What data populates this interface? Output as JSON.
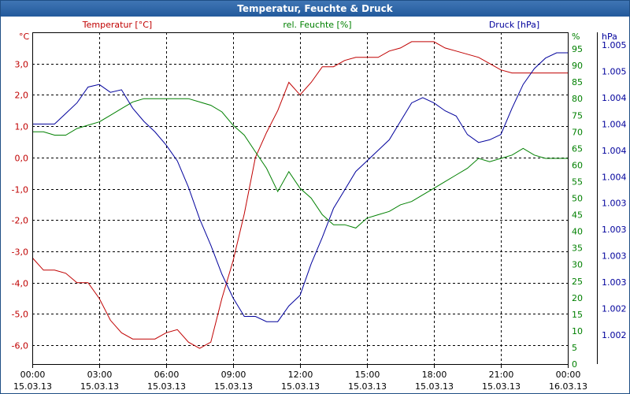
{
  "window": {
    "title": "Temperatur, Feuchte & Druck"
  },
  "chart_data": {
    "type": "line",
    "title": "Temperatur, Feuchte & Druck",
    "grid": true,
    "x_ticks": [
      {
        "time": "00:00",
        "date": "15.03.13"
      },
      {
        "time": "03:00",
        "date": "15.03.13"
      },
      {
        "time": "06:00",
        "date": "15.03.13"
      },
      {
        "time": "09:00",
        "date": "15.03.13"
      },
      {
        "time": "12:00",
        "date": "15.03.13"
      },
      {
        "time": "15:00",
        "date": "15.03.13"
      },
      {
        "time": "18:00",
        "date": "15.03.13"
      },
      {
        "time": "21:00",
        "date": "15.03.13"
      },
      {
        "time": "00:00",
        "date": "16.03.13"
      }
    ],
    "axes": {
      "temperature": {
        "series_label": "Temperatur [°C]",
        "unit": "°C",
        "color": "#c00000",
        "range": [
          -6.6,
          4.0
        ],
        "tick_values": [
          3,
          2,
          1,
          0,
          -1,
          -2,
          -3,
          -4,
          -5,
          -6
        ],
        "tick_labels": [
          "3,0",
          "2,0",
          "1,0",
          "0,0",
          "-1,0",
          "-2,0",
          "-3,0",
          "-4,0",
          "-5,0",
          "-6,0"
        ]
      },
      "humidity": {
        "series_label": "rel. Feuchte [%]",
        "unit": "%",
        "color": "#008000",
        "range": [
          0,
          100
        ],
        "tick_values": [
          95,
          90,
          85,
          80,
          75,
          70,
          65,
          60,
          55,
          50,
          45,
          40,
          35,
          30,
          25,
          20,
          15,
          10,
          5,
          0
        ],
        "tick_labels": [
          "95",
          "90",
          "85",
          "80",
          "75",
          "70",
          "65",
          "60",
          "55",
          "50",
          "45",
          "40",
          "35",
          "30",
          "25",
          "20",
          "15",
          "10",
          "5",
          "0"
        ]
      },
      "pressure": {
        "series_label": "Druck [hPa]",
        "unit": "hPa",
        "color": "#00009c",
        "tick_labels": [
          "1.005",
          "1.005",
          "1.004",
          "1.004",
          "1.004",
          "1.004",
          "1.003",
          "1.003",
          "1.003",
          "1.003",
          "1.002",
          "1.002"
        ]
      }
    },
    "series": [
      {
        "name": "Temperatur [°C]",
        "axis": "temperature",
        "color": "#c00000",
        "x_hours": [
          0,
          0.5,
          1,
          1.5,
          2,
          2.5,
          3,
          3.5,
          4,
          4.5,
          5,
          5.5,
          6,
          6.5,
          7,
          7.5,
          8,
          8.5,
          9,
          9.5,
          10,
          10.5,
          11,
          11.5,
          12,
          12.5,
          13,
          13.5,
          14,
          14.5,
          15,
          15.5,
          16,
          16.5,
          17,
          17.5,
          18,
          18.5,
          19,
          19.5,
          20,
          20.5,
          21,
          21.5,
          22,
          22.5,
          23,
          23.5,
          24
        ],
        "values": [
          -3.2,
          -3.6,
          -3.6,
          -3.7,
          -4.0,
          -4.0,
          -4.5,
          -5.2,
          -5.6,
          -5.8,
          -5.8,
          -5.8,
          -5.6,
          -5.5,
          -5.9,
          -6.1,
          -5.9,
          -4.5,
          -3.3,
          -1.8,
          0.0,
          0.8,
          1.5,
          2.4,
          2.0,
          2.4,
          2.9,
          2.9,
          3.1,
          3.2,
          3.2,
          3.2,
          3.4,
          3.5,
          3.7,
          3.7,
          3.7,
          3.5,
          3.4,
          3.3,
          3.2,
          3.0,
          2.8,
          2.7,
          2.7,
          2.7,
          2.7,
          2.7,
          2.7
        ]
      },
      {
        "name": "rel. Feuchte [%]",
        "axis": "humidity",
        "color": "#008000",
        "x_hours": [
          0,
          0.5,
          1,
          1.5,
          2,
          2.5,
          3,
          3.5,
          4,
          4.5,
          5,
          5.5,
          6,
          6.5,
          7,
          7.5,
          8,
          8.5,
          9,
          9.5,
          10,
          10.5,
          11,
          11.5,
          12,
          12.5,
          13,
          13.5,
          14,
          14.5,
          15,
          15.5,
          16,
          16.5,
          17,
          17.5,
          18,
          18.5,
          19,
          19.5,
          20,
          20.5,
          21,
          21.5,
          22,
          22.5,
          23,
          23.5,
          24
        ],
        "values": [
          70,
          70,
          69,
          69,
          71,
          72,
          73,
          75,
          77,
          79,
          80,
          80,
          80,
          80,
          80,
          79,
          78,
          76,
          72,
          69,
          64,
          59,
          52,
          58,
          53,
          50,
          45,
          42,
          42,
          41,
          44,
          45,
          46,
          48,
          49,
          51,
          53,
          55,
          57,
          59,
          62,
          61,
          62,
          63,
          65,
          63,
          62,
          62,
          62
        ]
      },
      {
        "name": "Druck [hPa]",
        "axis": "pressure",
        "color": "#00009c",
        "x_hours": [
          0,
          0.5,
          1,
          1.5,
          2,
          2.5,
          3,
          3.5,
          4,
          4.5,
          5,
          5.5,
          6,
          6.5,
          7,
          7.5,
          8,
          8.5,
          9,
          9.5,
          10,
          10.5,
          11,
          11.5,
          12,
          12.5,
          13,
          13.5,
          14,
          14.5,
          15,
          15.5,
          16,
          16.5,
          17,
          17.5,
          18,
          18.5,
          19,
          19.5,
          20,
          20.5,
          21,
          21.5,
          22,
          22.5,
          23,
          23.5,
          24
        ],
        "values_axis_ticks": [
          3.0,
          3.0,
          3.0,
          2.6,
          2.2,
          1.6,
          1.5,
          1.8,
          1.7,
          2.4,
          2.9,
          3.3,
          3.8,
          4.4,
          5.4,
          6.6,
          7.6,
          8.7,
          9.6,
          10.3,
          10.3,
          10.5,
          10.5,
          9.9,
          9.5,
          8.3,
          7.3,
          6.2,
          5.5,
          4.8,
          4.4,
          4.0,
          3.6,
          2.9,
          2.2,
          2.0,
          2.2,
          2.5,
          2.7,
          3.4,
          3.7,
          3.6,
          3.4,
          2.4,
          1.5,
          0.9,
          0.5,
          0.3,
          0.3
        ]
      }
    ]
  }
}
